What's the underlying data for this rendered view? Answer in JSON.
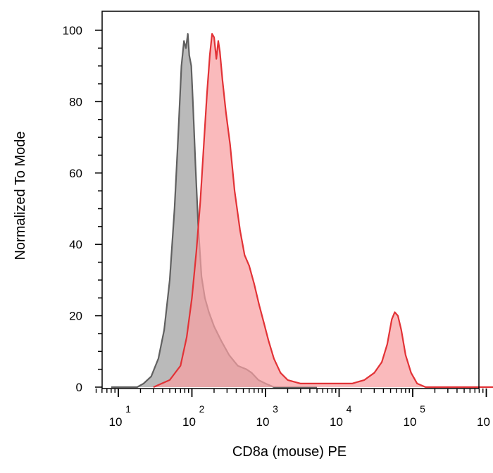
{
  "chart_data": {
    "type": "area",
    "title": "",
    "xlabel": "CD8a (mouse) PE",
    "ylabel": "Normalized To Mode",
    "x_scale": "log",
    "xlim": [
      5,
      1500000
    ],
    "ylim": [
      0,
      100
    ],
    "y_ticks": [
      0,
      20,
      40,
      60,
      80,
      100
    ],
    "x_ticks": [
      {
        "value": 10,
        "base": "10",
        "exp": "1"
      },
      {
        "value": 100,
        "base": "10",
        "exp": "2"
      },
      {
        "value": 1000,
        "base": "10",
        "exp": "3"
      },
      {
        "value": 10000,
        "base": "10",
        "exp": "4"
      },
      {
        "value": 100000,
        "base": "10",
        "exp": "5"
      },
      {
        "value": 1000000,
        "base": "10",
        "exp": "6"
      }
    ],
    "grid": false,
    "legend": "none",
    "series": [
      {
        "color": "#606060",
        "fill": "#b4b4b4",
        "points": [
          [
            8,
            0
          ],
          [
            18,
            0
          ],
          [
            22,
            1
          ],
          [
            28,
            3
          ],
          [
            35,
            8
          ],
          [
            42,
            16
          ],
          [
            50,
            30
          ],
          [
            58,
            50
          ],
          [
            65,
            70
          ],
          [
            72,
            90
          ],
          [
            78,
            97
          ],
          [
            83,
            95
          ],
          [
            88,
            99
          ],
          [
            92,
            93
          ],
          [
            98,
            90
          ],
          [
            104,
            78
          ],
          [
            112,
            62
          ],
          [
            122,
            45
          ],
          [
            135,
            31
          ],
          [
            150,
            25
          ],
          [
            170,
            21
          ],
          [
            200,
            17
          ],
          [
            250,
            13
          ],
          [
            320,
            9
          ],
          [
            420,
            6
          ],
          [
            550,
            5
          ],
          [
            650,
            4
          ],
          [
            800,
            2
          ],
          [
            1000,
            1
          ],
          [
            1300,
            0
          ],
          [
            5000,
            0
          ]
        ]
      },
      {
        "color": "#e23236",
        "fill": "#f8a0a2",
        "points": [
          [
            30,
            0
          ],
          [
            50,
            2
          ],
          [
            70,
            6
          ],
          [
            85,
            14
          ],
          [
            100,
            25
          ],
          [
            115,
            38
          ],
          [
            130,
            52
          ],
          [
            145,
            68
          ],
          [
            160,
            82
          ],
          [
            175,
            93
          ],
          [
            188,
            99
          ],
          [
            200,
            98
          ],
          [
            215,
            92
          ],
          [
            228,
            97
          ],
          [
            240,
            94
          ],
          [
            260,
            86
          ],
          [
            290,
            77
          ],
          [
            330,
            68
          ],
          [
            380,
            55
          ],
          [
            450,
            44
          ],
          [
            520,
            37
          ],
          [
            600,
            34
          ],
          [
            700,
            29
          ],
          [
            820,
            23
          ],
          [
            950,
            18
          ],
          [
            1100,
            13
          ],
          [
            1300,
            8
          ],
          [
            1600,
            4
          ],
          [
            2000,
            2
          ],
          [
            3000,
            1
          ],
          [
            5000,
            1
          ],
          [
            10000,
            1
          ],
          [
            15000,
            1
          ],
          [
            22000,
            2
          ],
          [
            30000,
            4
          ],
          [
            38000,
            7
          ],
          [
            45000,
            12
          ],
          [
            52000,
            19
          ],
          [
            57000,
            21
          ],
          [
            63000,
            20
          ],
          [
            70000,
            16
          ],
          [
            80000,
            9
          ],
          [
            95000,
            4
          ],
          [
            115000,
            1
          ],
          [
            150000,
            0
          ],
          [
            1400000,
            0
          ]
        ]
      }
    ]
  }
}
